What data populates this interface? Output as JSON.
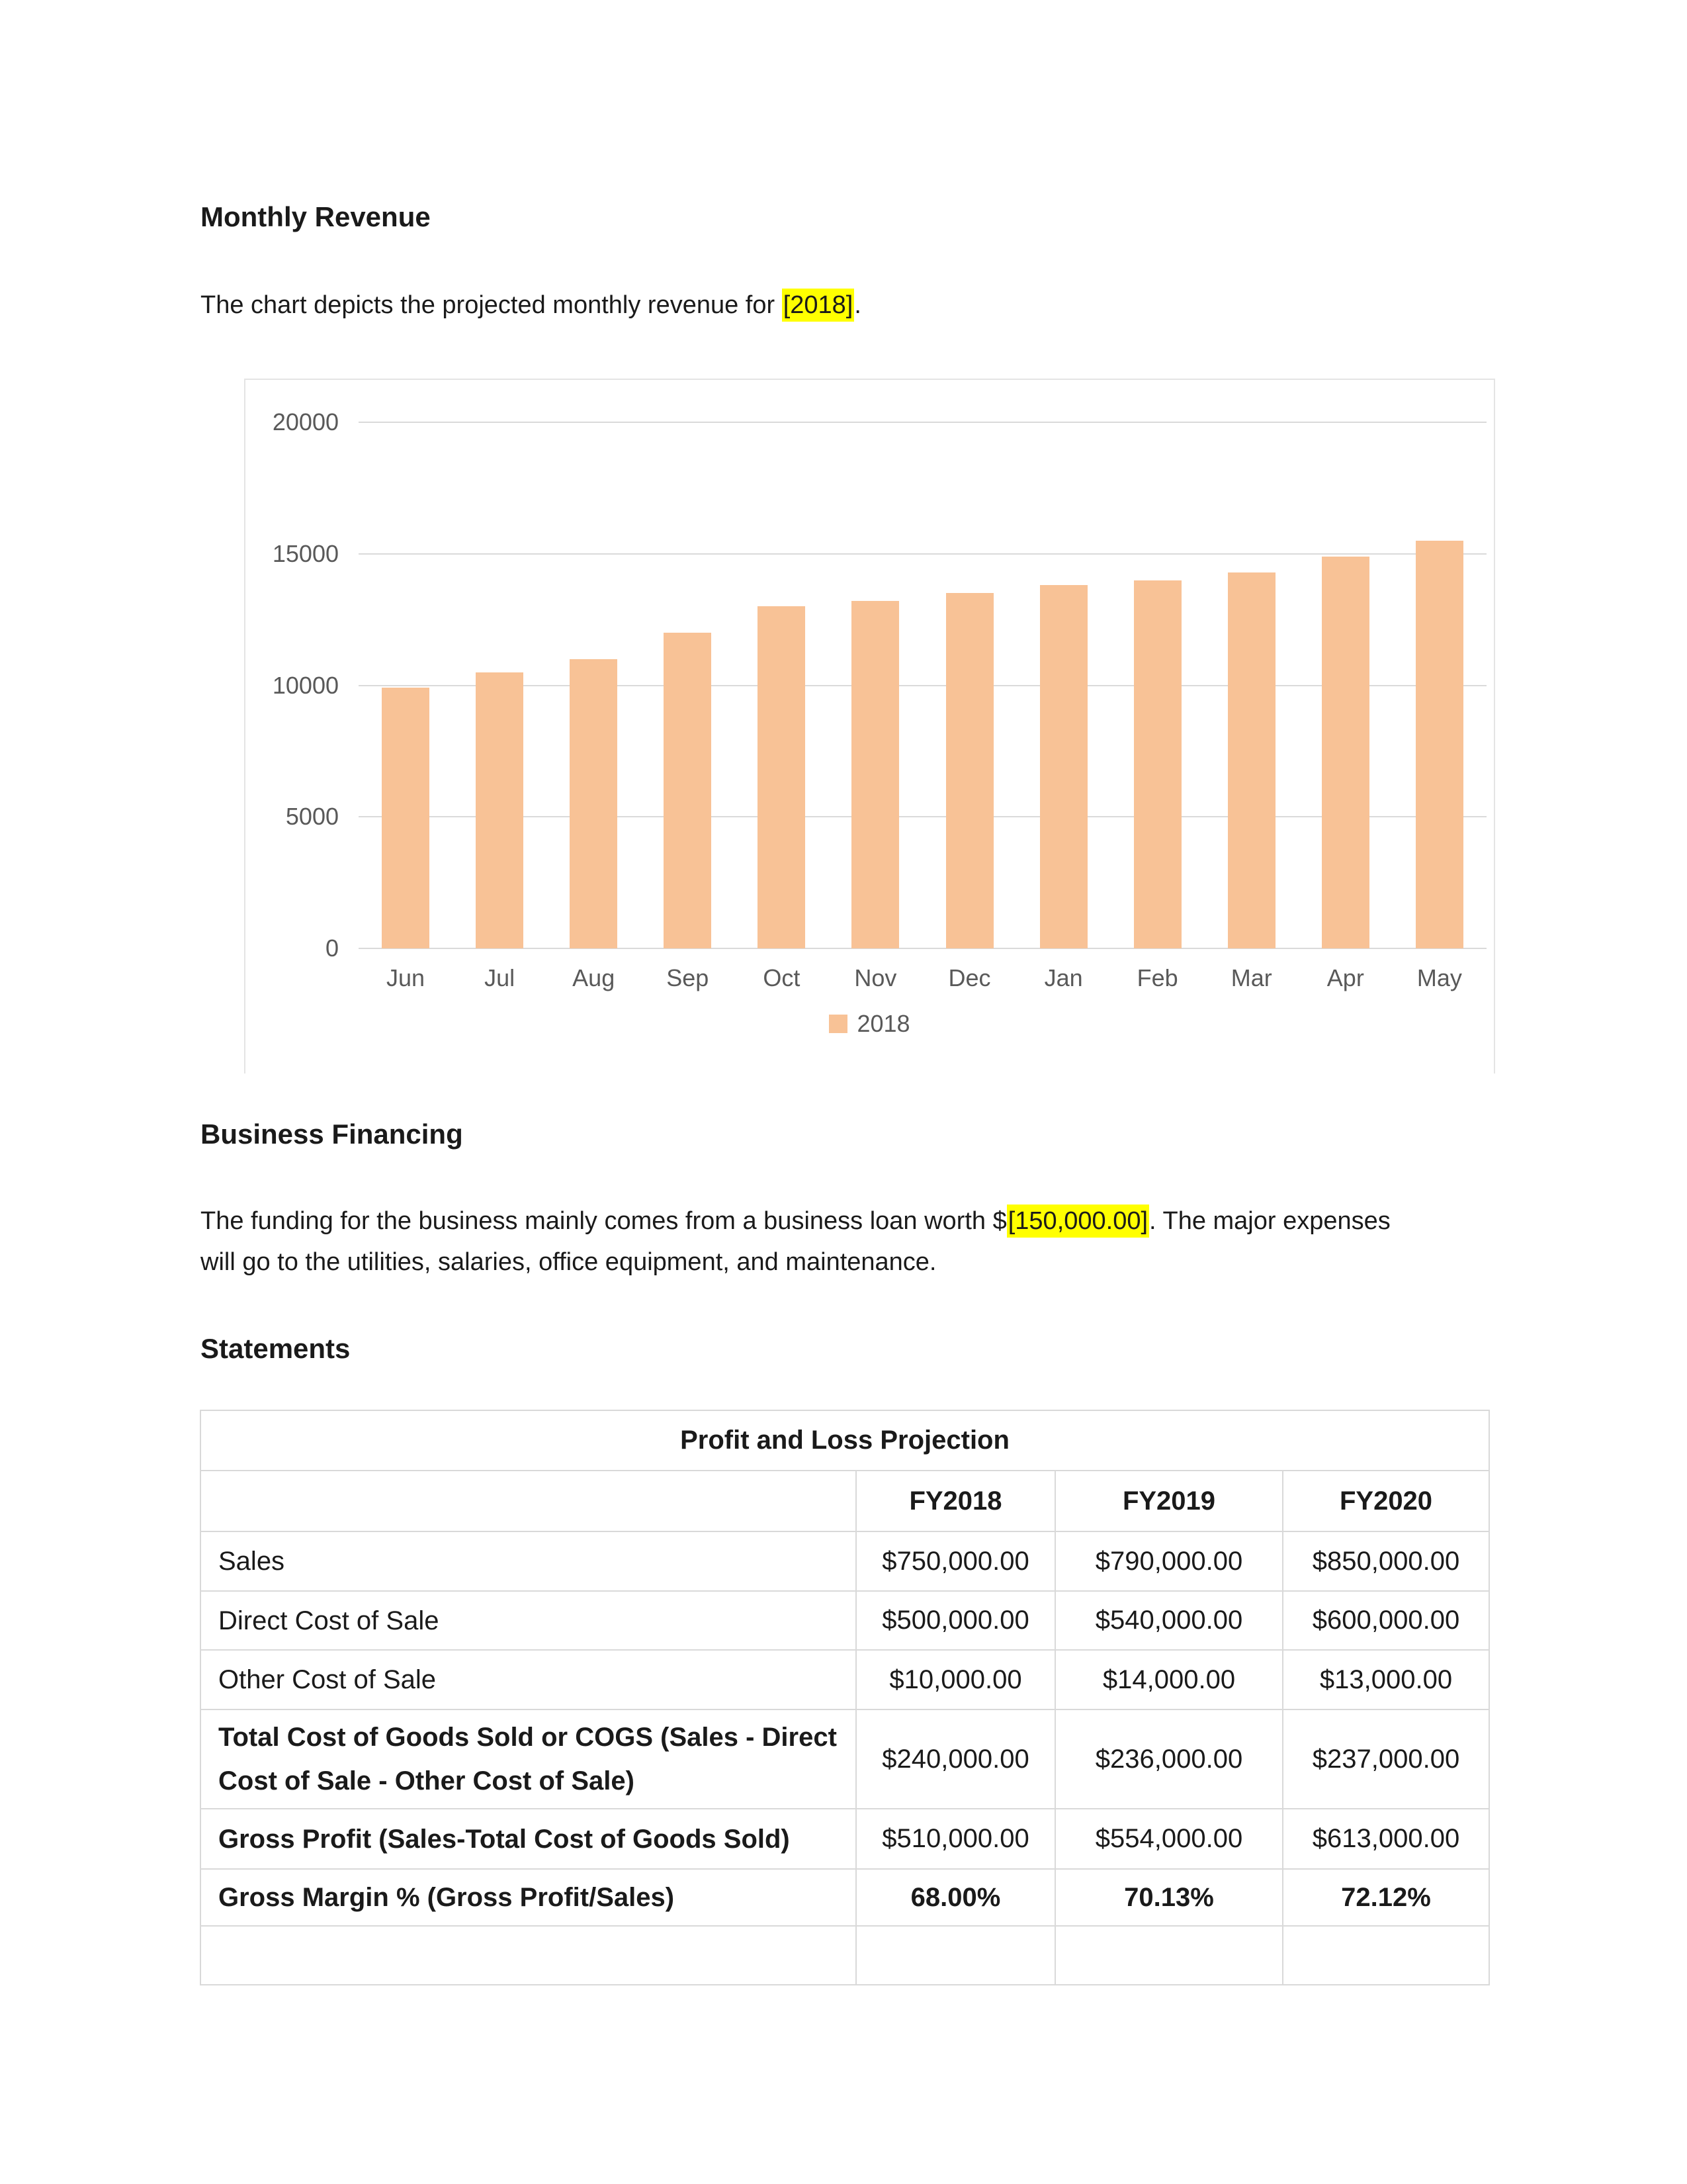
{
  "headings": {
    "monthly_revenue": "Monthly Revenue",
    "business_financing": "Business Financing",
    "statements": "Statements"
  },
  "paragraphs": {
    "revenue_intro": {
      "prefix": "The chart depicts the projected monthly revenue for ",
      "highlight": "[2018]",
      "suffix": "."
    },
    "financing": {
      "prefix": "The funding for the business mainly comes from a business loan worth $",
      "highlight": "[150,000.00]",
      "suffix": ". The major expenses\nwill go to the utilities, salaries, office equipment, and maintenance."
    }
  },
  "chart_data": {
    "type": "bar",
    "title": "",
    "xlabel": "",
    "ylabel": "",
    "categories": [
      "Jun",
      "Jul",
      "Aug",
      "Sep",
      "Oct",
      "Nov",
      "Dec",
      "Jan",
      "Feb",
      "Mar",
      "Apr",
      "May"
    ],
    "series": [
      {
        "name": "2018",
        "values": [
          9900,
          10500,
          11000,
          12000,
          13000,
          13200,
          13500,
          13800,
          14000,
          14300,
          14900,
          15500
        ]
      }
    ],
    "ylim": [
      0,
      20000
    ],
    "yticks": [
      0,
      5000,
      10000,
      15000,
      20000
    ],
    "grid": true,
    "legend_position": "bottom"
  },
  "table": {
    "title": "Profit and Loss Projection",
    "columns": [
      "",
      "FY2018",
      "FY2019",
      "FY2020"
    ],
    "rows": [
      {
        "label": "Sales",
        "emphasis": false,
        "values_emphasis": false,
        "values": [
          "$750,000.00",
          "$790,000.00",
          "$850,000.00"
        ]
      },
      {
        "label": "Direct Cost of Sale",
        "emphasis": false,
        "values_emphasis": false,
        "values": [
          "$500,000.00",
          "$540,000.00",
          "$600,000.00"
        ]
      },
      {
        "label": "Other Cost of Sale",
        "emphasis": false,
        "values_emphasis": false,
        "values": [
          "$10,000.00",
          "$14,000.00",
          "$13,000.00"
        ]
      },
      {
        "label": "Total Cost of Goods Sold or COGS (Sales - Direct\nCost of Sale - Other Cost of Sale)",
        "emphasis": true,
        "values_emphasis": false,
        "values": [
          "$240,000.00",
          "$236,000.00",
          "$237,000.00"
        ]
      },
      {
        "label": "Gross Profit (Sales-Total Cost of Goods Sold)",
        "emphasis": true,
        "values_emphasis": false,
        "values": [
          "$510,000.00",
          "$554,000.00",
          "$613,000.00"
        ]
      },
      {
        "label": "Gross Margin % (Gross Profit/Sales)",
        "emphasis": true,
        "values_emphasis": true,
        "values": [
          "68.00%",
          "70.13%",
          "72.12%"
        ]
      },
      {
        "label": "",
        "emphasis": false,
        "values_emphasis": false,
        "values": [
          "",
          "",
          ""
        ]
      }
    ]
  },
  "colors": {
    "highlight": "#ffff00",
    "bar": "#f8c296",
    "gridline": "#dadada",
    "chart_text": "#595959",
    "panel_border": "#e4e4e4",
    "table_border": "#d9d9d9",
    "text": "#1a1a1a"
  }
}
